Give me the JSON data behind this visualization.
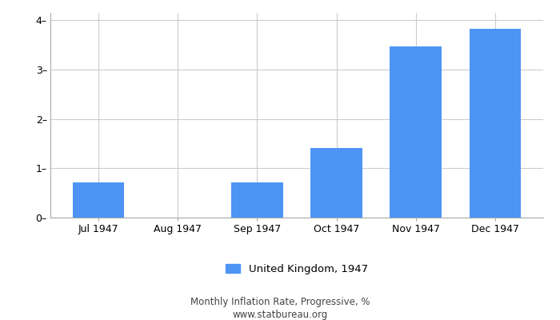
{
  "categories": [
    "Jul 1947",
    "Aug 1947",
    "Sep 1947",
    "Oct 1947",
    "Nov 1947",
    "Dec 1947"
  ],
  "values": [
    0.72,
    0.0,
    0.72,
    1.41,
    3.47,
    3.82
  ],
  "bar_color": "#4d94f5",
  "ylim": [
    0,
    4.15
  ],
  "yticks": [
    0,
    1,
    2,
    3,
    4
  ],
  "legend_label": "United Kingdom, 1947",
  "footer_line1": "Monthly Inflation Rate, Progressive, %",
  "footer_line2": "www.statbureau.org",
  "background_color": "#ffffff",
  "grid_color": "#cccccc",
  "bar_width": 0.65
}
